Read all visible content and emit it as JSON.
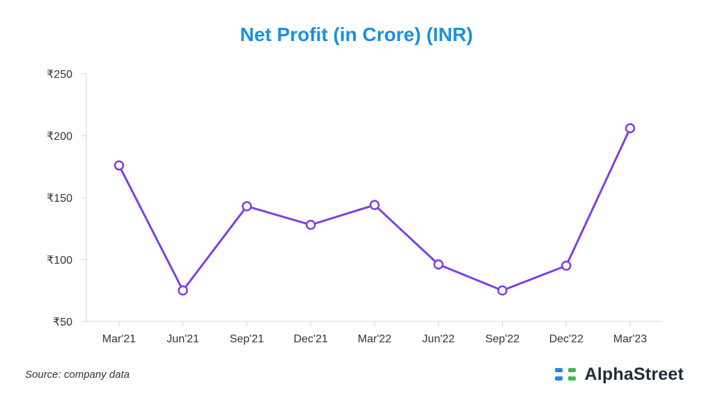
{
  "chart_data": {
    "type": "line",
    "title": "Net Profit (in Crore) (INR)",
    "categories": [
      "Mar'21",
      "Jun'21",
      "Sep'21",
      "Dec'21",
      "Mar'22",
      "Jun'22",
      "Sep'22",
      "Dec'22",
      "Mar'23"
    ],
    "series": [
      {
        "values": [
          176,
          75,
          143,
          128,
          144,
          96,
          75,
          95,
          206
        ]
      }
    ],
    "ylim": [
      50,
      250
    ],
    "yticks": [
      50,
      100,
      150,
      200,
      250
    ],
    "ytick_labels": [
      "₹50",
      "₹100",
      "₹150",
      "₹200",
      "₹250"
    ],
    "grid": false,
    "legend": "none",
    "line_color": "#7b3fe4"
  },
  "footer": {
    "source": "Source: company data",
    "brand": "AlphaStreet",
    "brand_icon": "alphastreet-logo-icon"
  }
}
